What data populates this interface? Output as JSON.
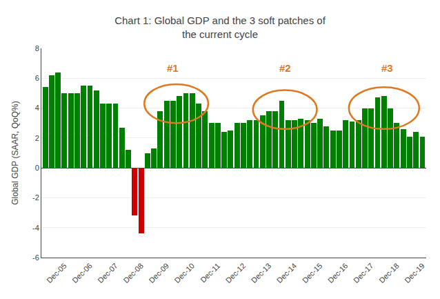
{
  "chart_data": {
    "type": "bar",
    "title": "Chart 1: Global GDP and the 3 soft patches of\nthe current cycle",
    "ylabel": "Global GDP (SAAR, QoQ%)",
    "categories": [
      null,
      null,
      null,
      "Dec-05",
      null,
      null,
      null,
      "Dec-06",
      null,
      null,
      null,
      "Dec-07",
      null,
      null,
      null,
      "Dec-08",
      null,
      null,
      null,
      "Dec-09",
      null,
      null,
      null,
      "Dec-10",
      null,
      null,
      null,
      "Dec-11",
      null,
      null,
      null,
      "Dec-12",
      null,
      null,
      null,
      "Dec-13",
      null,
      null,
      null,
      "Dec-14",
      null,
      null,
      null,
      "Dec-15",
      null,
      null,
      null,
      "Dec-16",
      null,
      null,
      null,
      "Dec-17",
      null,
      null,
      null,
      "Dec-18",
      null,
      null,
      null,
      "Dec-19"
    ],
    "values": [
      5.4,
      6.2,
      6.4,
      5.0,
      5.0,
      5.0,
      5.5,
      5.5,
      5.2,
      4.3,
      4.3,
      4.3,
      2.7,
      1.2,
      -3.2,
      -4.4,
      1.0,
      1.3,
      3.8,
      4.5,
      4.5,
      4.8,
      5.0,
      5.0,
      4.3,
      3.8,
      3.0,
      3.0,
      2.4,
      2.5,
      3.0,
      3.0,
      3.2,
      3.2,
      3.5,
      3.8,
      3.8,
      4.5,
      3.2,
      3.2,
      3.3,
      3.2,
      3.0,
      3.3,
      2.8,
      2.5,
      2.5,
      3.2,
      3.1,
      3.2,
      4.0,
      4.0,
      4.7,
      4.8,
      4.0,
      3.0,
      2.6,
      2.1,
      2.4,
      2.1
    ],
    "colors": [
      "#008000",
      "#008000",
      "#008000",
      "#008000",
      "#008000",
      "#008000",
      "#008000",
      "#008000",
      "#008000",
      "#008000",
      "#008000",
      "#008000",
      "#008000",
      "#008000",
      "#CC0000",
      "#CC0000",
      "#008000",
      "#008000",
      "#008000",
      "#008000",
      "#008000",
      "#008000",
      "#008000",
      "#008000",
      "#008000",
      "#008000",
      "#008000",
      "#008000",
      "#008000",
      "#008000",
      "#008000",
      "#008000",
      "#008000",
      "#008000",
      "#008000",
      "#008000",
      "#008000",
      "#008000",
      "#008000",
      "#008000",
      "#008000",
      "#008000",
      "#008000",
      "#008000",
      "#008000",
      "#008000",
      "#008000",
      "#008000",
      "#008000",
      "#008000",
      "#008000",
      "#008000",
      "#008000",
      "#008000",
      "#008000",
      "#008000",
      "#008000",
      "#008000",
      "#008000",
      "#008000"
    ],
    "ylim": [
      -6,
      8
    ],
    "yticks": [
      -6,
      -4,
      -2,
      0,
      2,
      4,
      6,
      8
    ],
    "grid": true,
    "annotations": [
      {
        "text": "#1",
        "x": 20.0,
        "y": 6.2,
        "ellipse": {
          "cx": 20.5,
          "cy": 4.3,
          "rx": 5.0,
          "ry": 1.3
        }
      },
      {
        "text": "#2",
        "x": 37.5,
        "y": 6.2,
        "ellipse": {
          "cx": 37.5,
          "cy": 3.9,
          "rx": 5.0,
          "ry": 1.3
        }
      },
      {
        "text": "#3",
        "x": 53.5,
        "y": 6.2,
        "ellipse": {
          "cx": 53.0,
          "cy": 4.0,
          "rx": 5.5,
          "ry": 1.4
        }
      }
    ]
  }
}
